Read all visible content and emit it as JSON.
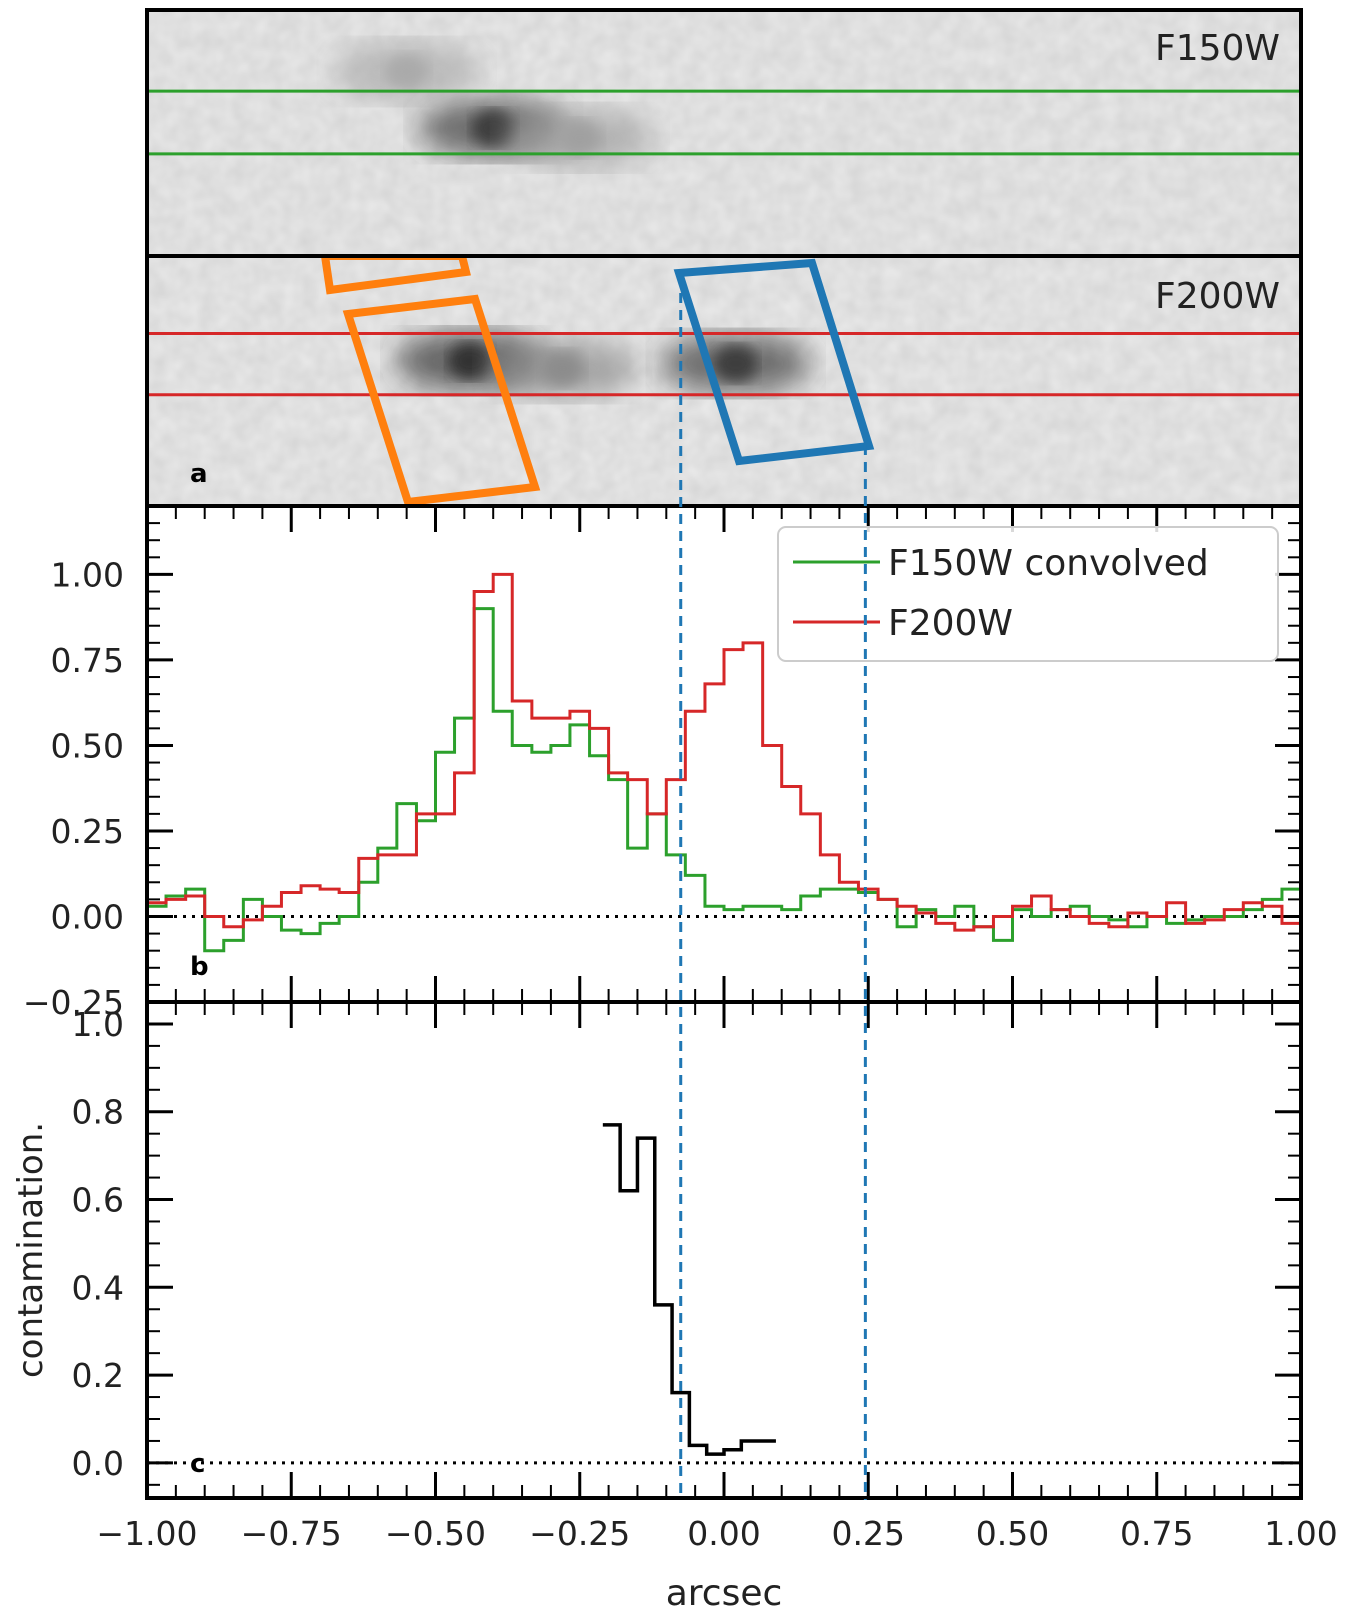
{
  "chart_data": [
    {
      "type": "image",
      "panel": "top",
      "image_label": "F150W",
      "guide_lines": {
        "color": "#2ca02c",
        "y_fraction_top": 0.33,
        "y_fraction_bottom": 0.585
      },
      "blobs": [
        {
          "cx_arcsec": -0.4,
          "cy_frac": 0.48,
          "dark": 0.85
        },
        {
          "cx_arcsec": -0.25,
          "cy_frac": 0.52,
          "dark": 0.35
        },
        {
          "cx_arcsec": -0.55,
          "cy_frac": 0.25,
          "dark": 0.3
        }
      ]
    },
    {
      "type": "image",
      "panel": "middle",
      "image_label": "F200W",
      "panel_letter": "a",
      "guide_lines": {
        "color": "#d62728",
        "y_fraction_top": 0.31,
        "y_fraction_bottom": 0.555
      },
      "apertures": [
        {
          "name": "orange-aperture",
          "color": "#ff7f0e"
        },
        {
          "name": "blue-aperture",
          "color": "#1f77b4"
        }
      ],
      "blobs": [
        {
          "cx_arcsec": -0.44,
          "cy_frac": 0.42,
          "dark": 0.9
        },
        {
          "cx_arcsec": -0.28,
          "cy_frac": 0.45,
          "dark": 0.45
        },
        {
          "cx_arcsec": 0.02,
          "cy_frac": 0.43,
          "dark": 0.85
        }
      ]
    },
    {
      "type": "line",
      "panel": "profile",
      "panel_letter": "b",
      "xlim": [
        -1.0,
        1.0
      ],
      "ylim": [
        -0.25,
        1.2
      ],
      "yticks": [
        -0.25,
        0.0,
        0.25,
        0.5,
        0.75,
        1.0
      ],
      "ytick_labels": [
        "−0.25",
        "0.00",
        "0.25",
        "0.50",
        "0.75",
        "1.00"
      ],
      "zero_line": true,
      "legend": {
        "position": "upper-right",
        "entries": [
          "F150W convolved",
          "F200W"
        ]
      },
      "series": [
        {
          "name": "F150W convolved",
          "color": "#2ca02c",
          "step": true,
          "x": [
            -1.0,
            -0.967,
            -0.933,
            -0.9,
            -0.867,
            -0.833,
            -0.8,
            -0.767,
            -0.733,
            -0.7,
            -0.667,
            -0.633,
            -0.6,
            -0.567,
            -0.533,
            -0.5,
            -0.467,
            -0.433,
            -0.4,
            -0.367,
            -0.333,
            -0.3,
            -0.267,
            -0.233,
            -0.2,
            -0.167,
            -0.133,
            -0.1,
            -0.067,
            -0.033,
            0.0,
            0.033,
            0.067,
            0.1,
            0.133,
            0.167,
            0.2,
            0.233,
            0.267,
            0.3,
            0.333,
            0.367,
            0.4,
            0.433,
            0.467,
            0.5,
            0.533,
            0.567,
            0.6,
            0.633,
            0.667,
            0.7,
            0.733,
            0.767,
            0.8,
            0.833,
            0.867,
            0.9,
            0.933,
            0.967,
            1.0
          ],
          "y": [
            0.03,
            0.06,
            0.08,
            -0.1,
            -0.07,
            0.05,
            0.0,
            -0.04,
            -0.05,
            -0.02,
            0.0,
            0.1,
            0.2,
            0.33,
            0.28,
            0.48,
            0.58,
            0.9,
            0.6,
            0.5,
            0.48,
            0.5,
            0.56,
            0.47,
            0.4,
            0.2,
            0.3,
            0.18,
            0.12,
            0.03,
            0.02,
            0.03,
            0.03,
            0.02,
            0.06,
            0.08,
            0.08,
            0.07,
            0.05,
            -0.03,
            0.02,
            0.0,
            0.03,
            -0.03,
            -0.07,
            0.02,
            0.0,
            0.02,
            0.03,
            0.0,
            -0.01,
            -0.03,
            0.0,
            -0.02,
            -0.01,
            0.0,
            0.0,
            0.02,
            0.05,
            0.08,
            0.08
          ]
        },
        {
          "name": "F200W",
          "color": "#d62728",
          "step": true,
          "x": [
            -1.0,
            -0.967,
            -0.933,
            -0.9,
            -0.867,
            -0.833,
            -0.8,
            -0.767,
            -0.733,
            -0.7,
            -0.667,
            -0.633,
            -0.6,
            -0.567,
            -0.533,
            -0.5,
            -0.467,
            -0.433,
            -0.4,
            -0.367,
            -0.333,
            -0.3,
            -0.267,
            -0.233,
            -0.2,
            -0.167,
            -0.133,
            -0.1,
            -0.067,
            -0.033,
            0.0,
            0.033,
            0.067,
            0.1,
            0.133,
            0.167,
            0.2,
            0.233,
            0.267,
            0.3,
            0.333,
            0.367,
            0.4,
            0.433,
            0.467,
            0.5,
            0.533,
            0.567,
            0.6,
            0.633,
            0.667,
            0.7,
            0.733,
            0.767,
            0.8,
            0.833,
            0.867,
            0.9,
            0.933,
            0.967,
            1.0
          ],
          "y": [
            0.04,
            0.05,
            0.06,
            0.0,
            -0.03,
            -0.01,
            0.03,
            0.07,
            0.09,
            0.08,
            0.07,
            0.17,
            0.18,
            0.18,
            0.3,
            0.3,
            0.42,
            0.95,
            1.0,
            0.63,
            0.58,
            0.58,
            0.6,
            0.55,
            0.42,
            0.4,
            0.3,
            0.4,
            0.6,
            0.68,
            0.78,
            0.8,
            0.5,
            0.38,
            0.3,
            0.18,
            0.1,
            0.08,
            0.05,
            0.03,
            0.01,
            -0.02,
            -0.04,
            -0.03,
            0.0,
            0.03,
            0.06,
            0.02,
            0.0,
            -0.02,
            -0.03,
            0.01,
            0.0,
            0.04,
            -0.02,
            -0.01,
            0.02,
            0.04,
            0.03,
            -0.02,
            0.03
          ]
        }
      ]
    },
    {
      "type": "line",
      "panel": "contamination",
      "panel_letter": "c",
      "xlabel": "arcsec",
      "ylabel": "contamination.",
      "xlim": [
        -1.0,
        1.0
      ],
      "ylim": [
        -0.08,
        1.05
      ],
      "xticks": [
        -1.0,
        -0.75,
        -0.5,
        -0.25,
        0.0,
        0.25,
        0.5,
        0.75,
        1.0
      ],
      "xtick_labels": [
        "−1.00",
        "−0.75",
        "−0.50",
        "−0.25",
        "0.00",
        "0.25",
        "0.50",
        "0.75",
        "1.00"
      ],
      "yticks": [
        0.0,
        0.2,
        0.4,
        0.6,
        0.8,
        1.0
      ],
      "ytick_labels": [
        "0.0",
        "0.2",
        "0.4",
        "0.6",
        "0.8",
        "1.0"
      ],
      "zero_line": true,
      "series": [
        {
          "color": "#000000",
          "step": true,
          "x": [
            -0.21,
            -0.18,
            -0.15,
            -0.12,
            -0.09,
            -0.06,
            -0.03,
            0.0,
            0.03,
            0.06
          ],
          "y": [
            0.77,
            0.62,
            0.74,
            0.36,
            0.16,
            0.04,
            0.02,
            0.03,
            0.05,
            0.05
          ]
        }
      ]
    }
  ],
  "aperture_marks": {
    "x_left": -0.075,
    "x_right": 0.245,
    "color": "#1f77b4"
  }
}
